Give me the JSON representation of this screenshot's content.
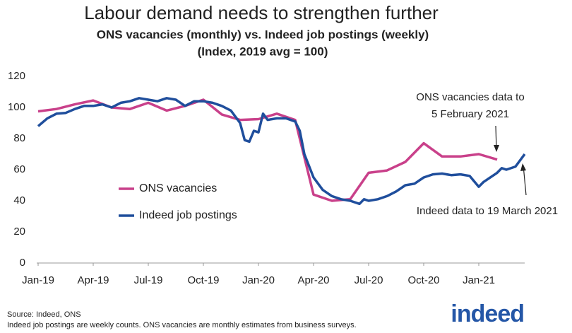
{
  "chart_data": {
    "type": "line",
    "title": "Labour demand needs to strengthen further",
    "subtitle": "ONS vacancies (monthly) vs. Indeed job postings (weekly)",
    "subtitle2": "(Index, 2019 avg = 100)",
    "xlim": [
      0,
      26.5
    ],
    "xticks": [
      {
        "value": 0,
        "label": "Jan-19"
      },
      {
        "value": 3,
        "label": "Apr-19"
      },
      {
        "value": 6,
        "label": "Jul-19"
      },
      {
        "value": 9,
        "label": "Oct-19"
      },
      {
        "value": 12,
        "label": "Jan-20"
      },
      {
        "value": 15,
        "label": "Apr-20"
      },
      {
        "value": 18,
        "label": "Jul-20"
      },
      {
        "value": 21,
        "label": "Oct-20"
      },
      {
        "value": 24,
        "label": "Jan-21"
      }
    ],
    "ylim": [
      0,
      120
    ],
    "yticks": [
      0,
      20,
      40,
      60,
      80,
      100,
      120
    ],
    "series": [
      {
        "name": "ONS vacancies",
        "color": "#c9408a",
        "x": [
          0,
          1,
          2,
          3,
          4,
          5,
          6,
          7,
          8,
          9,
          10,
          11,
          12,
          13,
          14,
          15,
          16,
          17,
          18,
          19,
          20,
          21,
          22,
          23,
          24,
          25
        ],
        "values": [
          97.5,
          99,
          102,
          104.5,
          100,
          99,
          103,
          98,
          101,
          105,
          95.5,
          92,
          92.5,
          96,
          92,
          44,
          40,
          41,
          58,
          59.5,
          65,
          77,
          68.5,
          68.5,
          70,
          66.5
        ]
      },
      {
        "name": "Indeed job postings",
        "color": "#1f4e9c",
        "x": [
          0,
          0.5,
          1,
          1.5,
          2,
          2.5,
          3,
          3.5,
          4,
          4.5,
          5,
          5.5,
          6,
          6.5,
          7,
          7.5,
          8,
          8.5,
          9,
          9.5,
          10,
          10.5,
          11,
          11.25,
          11.5,
          11.75,
          12,
          12.25,
          12.5,
          13,
          13.5,
          14,
          14.25,
          14.5,
          15,
          15.5,
          16,
          16.5,
          17,
          17.5,
          17.75,
          18,
          18.5,
          19,
          19.5,
          20,
          20.5,
          21,
          21.5,
          22,
          22.5,
          23,
          23.5,
          24,
          24.25,
          24.5,
          25,
          25.25,
          25.5,
          26,
          26.5
        ],
        "values": [
          88,
          93,
          96,
          96.5,
          99,
          101,
          101,
          102,
          100,
          103,
          104,
          106,
          105,
          104,
          106,
          105,
          101,
          104,
          104,
          103,
          101,
          98,
          90,
          79,
          78,
          85,
          84,
          96,
          92,
          93,
          93,
          91,
          85,
          70,
          55,
          47,
          43,
          41,
          40,
          38,
          41,
          40,
          41,
          43,
          46,
          50,
          51,
          55,
          57,
          57.5,
          56.5,
          57,
          56,
          49,
          52,
          54,
          58,
          61,
          60,
          62,
          70
        ]
      }
    ],
    "annotations": [
      "ONS vacancies data to",
      "5 February 2021",
      "Indeed data to 19 March 2021"
    ],
    "source": "Source: Indeed, ONS",
    "note": "Indeed job postings are weekly counts. ONS vacancies are monthly estimates from business surveys.",
    "logo": "indeed"
  }
}
